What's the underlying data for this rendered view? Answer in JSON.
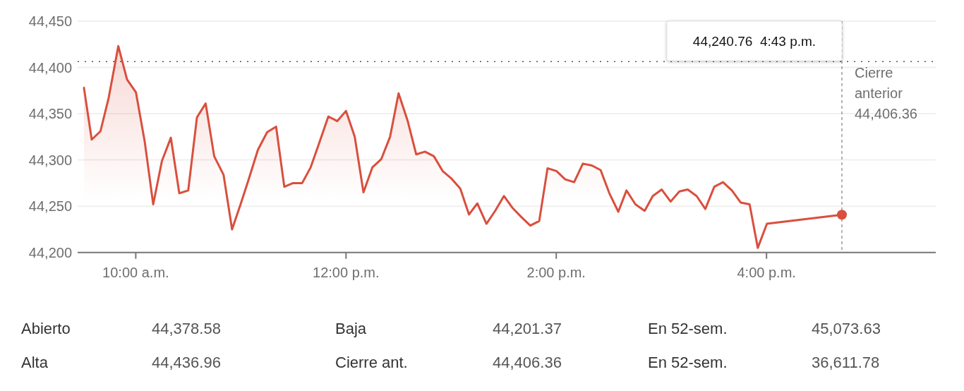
{
  "chart_data": {
    "type": "area",
    "x": [
      9.507,
      9.581,
      9.664,
      9.742,
      9.834,
      9.917,
      10.002,
      10.085,
      10.166,
      10.249,
      10.334,
      10.414,
      10.499,
      10.582,
      10.665,
      10.746,
      10.835,
      10.916,
      10.997,
      11.077,
      11.162,
      11.25,
      11.335,
      11.413,
      11.496,
      11.583,
      11.664,
      11.747,
      11.832,
      11.917,
      12.0,
      12.083,
      12.166,
      12.251,
      12.336,
      12.419,
      12.5,
      12.587,
      12.668,
      12.751,
      12.836,
      12.919,
      13.002,
      13.087,
      13.17,
      13.249,
      13.336,
      13.419,
      13.502,
      13.585,
      13.67,
      13.753,
      13.838,
      13.917,
      14.002,
      14.085,
      14.17,
      14.253,
      14.339,
      14.422,
      14.505,
      14.59,
      14.668,
      14.753,
      14.841,
      14.918,
      15.003,
      15.088,
      15.171,
      15.25,
      15.335,
      15.418,
      15.503,
      15.586,
      15.671,
      15.754,
      15.839,
      15.917,
      16.004,
      16.717
    ],
    "series": [
      {
        "color": "#d94f3d",
        "values": [
          44378,
          44322,
          44331,
          44367,
          44423,
          44387,
          44373,
          44320,
          44252,
          44299,
          44324,
          44264,
          44267,
          44346,
          44361,
          44304,
          44284,
          44225,
          44252,
          44280,
          44311,
          44330,
          44336,
          44271,
          44275,
          44275,
          44292,
          44319,
          44347,
          44342,
          44353,
          44325,
          44265,
          44292,
          44301,
          44325,
          44372,
          44342,
          44306,
          44309,
          44304,
          44288,
          44280,
          44269,
          44241,
          44253,
          44231,
          44245,
          44261,
          44248,
          44238,
          44229,
          44234,
          44291,
          44288,
          44279,
          44276,
          44296,
          44294,
          44289,
          44264,
          44244,
          44267,
          44252,
          44245,
          44261,
          44268,
          44255,
          44266,
          44268,
          44261,
          44247,
          44271,
          44276,
          44267,
          44254,
          44252,
          44205,
          44231,
          44240.76
        ]
      }
    ],
    "xlim": [
      9.447,
      17.61
    ],
    "xticks": [
      {
        "value": 10,
        "label": "10:00 a.m."
      },
      {
        "value": 12,
        "label": "12:00 p.m."
      },
      {
        "value": 14,
        "label": "2:00 p.m."
      },
      {
        "value": 16,
        "label": "4:00 p.m."
      }
    ],
    "ylim": [
      44200,
      44450
    ],
    "yticks": [
      {
        "value": 44200,
        "label": "44,200"
      },
      {
        "value": 44250,
        "label": "44,250"
      },
      {
        "value": 44300,
        "label": "44,300"
      },
      {
        "value": 44350,
        "label": "44,350"
      },
      {
        "value": 44400,
        "label": "44,400"
      },
      {
        "value": 44450,
        "label": "44,450"
      }
    ],
    "grid": "y",
    "marker": "none",
    "ref_lines": [
      {
        "axis": "y",
        "value": 44406.36,
        "label": "Cierre anterior 44,406.36",
        "line_style": "dotted",
        "color": "#555555"
      },
      {
        "axis": "x",
        "value": 16.717,
        "label": null,
        "line_style": "dashed",
        "color": "#999999"
      }
    ],
    "annotations": [
      "44,240.76  4:43 p.m.",
      "Abierto",
      "44,378.58",
      "Baja",
      "44,201.37",
      "En 52-sem.",
      "45,073.63",
      "Alta",
      "44,436.96",
      "Cierre ant.",
      "44,406.36",
      "En 52-sem.",
      "36,611.78"
    ]
  }
}
